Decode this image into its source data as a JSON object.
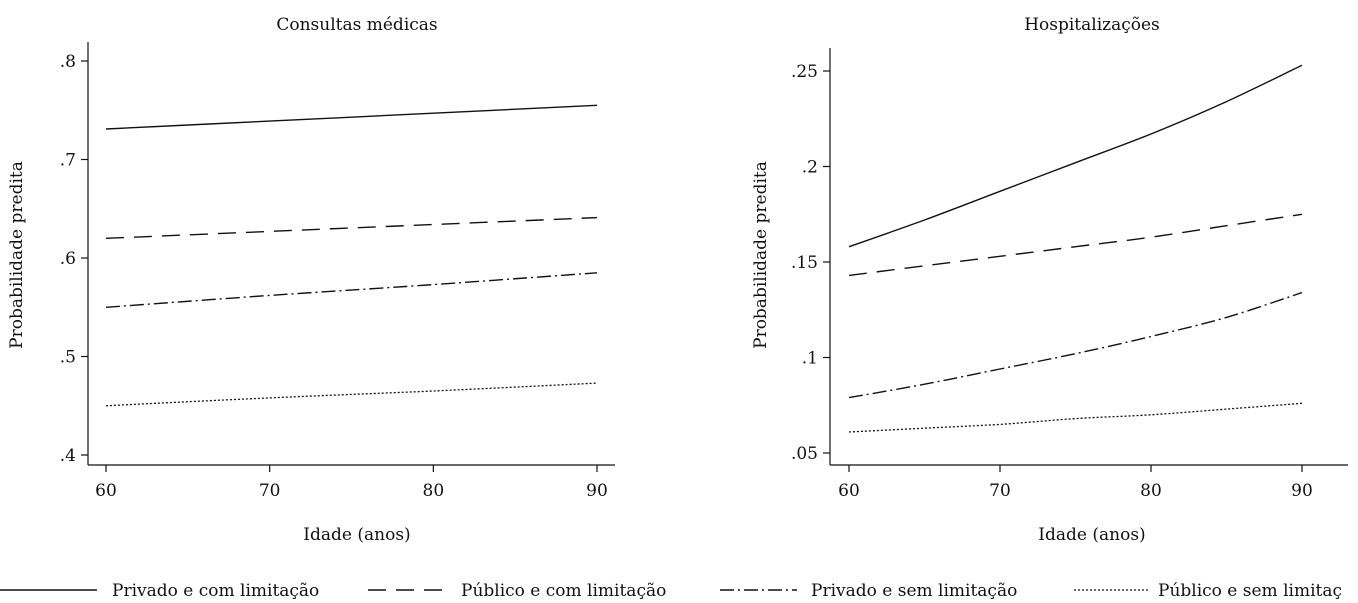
{
  "chart_data": [
    {
      "type": "line",
      "title": "Consultas médicas",
      "xlabel": "Idade (anos)",
      "ylabel": "Probabilidade predita",
      "xlim": [
        60,
        90
      ],
      "ylim": [
        0.4,
        0.8
      ],
      "x_ticks": [
        60,
        70,
        80,
        90
      ],
      "x_tick_labels": [
        "60",
        "70",
        "80",
        "90"
      ],
      "y_ticks": [
        0.4,
        0.5,
        0.6,
        0.7,
        0.8
      ],
      "y_tick_labels": [
        ".4",
        ".5",
        ".6",
        ".7",
        ".8"
      ],
      "grid": false,
      "x": [
        60,
        70,
        80,
        90
      ],
      "series": [
        {
          "name": "Privado e com limitação",
          "style": "solid",
          "values": [
            0.731,
            0.739,
            0.747,
            0.755
          ]
        },
        {
          "name": "Público e com limitação",
          "style": "dashed",
          "values": [
            0.62,
            0.627,
            0.634,
            0.641
          ]
        },
        {
          "name": "Privado e sem limitação",
          "style": "dashdot",
          "values": [
            0.55,
            0.562,
            0.573,
            0.585
          ]
        },
        {
          "name": "Público e sem limitação",
          "style": "dotted",
          "values": [
            0.45,
            0.458,
            0.465,
            0.473
          ]
        }
      ]
    },
    {
      "type": "line",
      "title": "Hospitalizações",
      "xlabel": "Idade (anos)",
      "ylabel": "Probabilidade predita",
      "xlim": [
        60,
        90
      ],
      "ylim": [
        0.05,
        0.25
      ],
      "x_ticks": [
        60,
        70,
        80,
        90
      ],
      "x_tick_labels": [
        "60",
        "70",
        "80",
        "90"
      ],
      "y_ticks": [
        0.05,
        0.1,
        0.15,
        0.2,
        0.25
      ],
      "y_tick_labels": [
        ".05",
        ".1",
        ".15",
        ".2",
        ".25"
      ],
      "grid": false,
      "x": [
        60,
        65,
        70,
        75,
        80,
        85,
        90
      ],
      "series": [
        {
          "name": "Privado e com limitação",
          "style": "solid",
          "values": [
            0.158,
            0.172,
            0.187,
            0.202,
            0.217,
            0.234,
            0.253
          ]
        },
        {
          "name": "Público e com limitação",
          "style": "dashed",
          "values": [
            0.143,
            0.148,
            0.153,
            0.158,
            0.163,
            0.169,
            0.175
          ]
        },
        {
          "name": "Privado e sem limitação",
          "style": "dashdot",
          "values": [
            0.079,
            0.086,
            0.094,
            0.102,
            0.111,
            0.121,
            0.134
          ]
        },
        {
          "name": "Público e sem limitação",
          "style": "dotted",
          "values": [
            0.061,
            0.063,
            0.065,
            0.068,
            0.07,
            0.073,
            0.076
          ]
        }
      ]
    }
  ],
  "legend": {
    "placement": "bottom",
    "items": [
      {
        "label": "Privado e com limitação",
        "style": "solid"
      },
      {
        "label": "Público e com limitação",
        "style": "dashed"
      },
      {
        "label": "Privado e sem limitação",
        "style": "dashdot"
      },
      {
        "label": "Público e sem limitaç",
        "style": "dotted"
      }
    ]
  }
}
